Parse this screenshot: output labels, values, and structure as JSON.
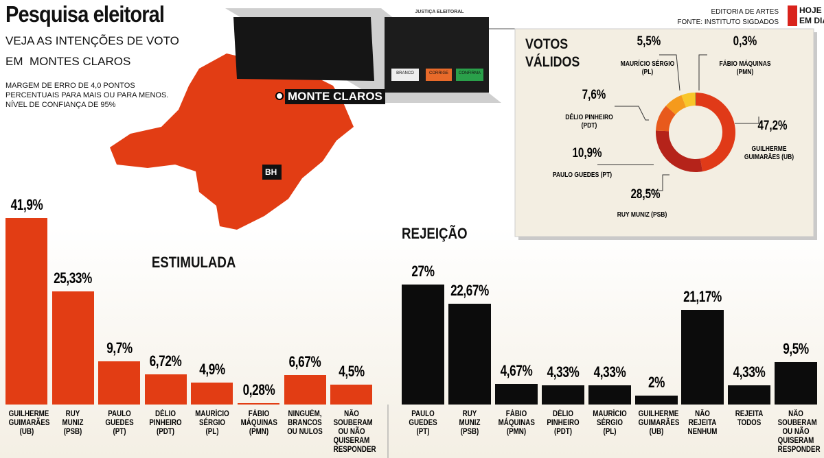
{
  "header": {
    "title": "Pesquisa eleitoral",
    "subtitle": [
      "VEJA AS INTENÇÕES DE VOTO",
      "EM  MONTES CLAROS"
    ],
    "note": "MARGEM DE ERRO DE 4,0 PONTOS PERCENTUAIS PARA MAIS OU PARA MENOS. NÍVEL DE CONFIANÇA DE 95%",
    "credits": [
      "EDITORIA DE ARTES",
      "FONTE: INSTITUTO SIGDADOS"
    ],
    "logo": [
      "HOJE",
      "EM DIA"
    ],
    "map_labels": [
      "MONTE CLAROS",
      "BH"
    ],
    "ballot": {
      "title": "JUSTIÇA ELEITORAL",
      "keys": [
        "BRANCO",
        "CORRIGE",
        "CONFIRMA"
      ]
    }
  },
  "chart_data": [
    {
      "type": "bar",
      "title": "ESTIMULADA",
      "color": "#e23d14",
      "categories": [
        "GUILHERME GUIMARÃES (UB)",
        "RUY MUNIZ (PSB)",
        "PAULO GUEDES (PT)",
        "DÉLIO PINHEIRO (PDT)",
        "MAURÍCIO SÉRGIO (PL)",
        "FÁBIO MÁQUINAS (PMN)",
        "NINGUÉM, BRANCOS OU NULOS",
        "NÃO SOUBERAM OU NÃO QUISERAM RESPONDER"
      ],
      "values": [
        41.9,
        25.33,
        9.7,
        6.72,
        4.9,
        0.28,
        6.67,
        4.5
      ],
      "value_labels": [
        "41,9%",
        "25,33%",
        "9,7%",
        "6,72%",
        "4,9%",
        "0,28%",
        "6,67%",
        "4,5%"
      ]
    },
    {
      "type": "bar",
      "title": "REJEIÇÃO",
      "color": "#0c0c0c",
      "categories": [
        "PAULO GUEDES (PT)",
        "RUY MUNIZ (PSB)",
        "FÁBIO MÁQUINAS (PMN)",
        "DÉLIO PINHEIRO (PDT)",
        "MAURÍCIO SÉRGIO (PL)",
        "GUILHERME GUIMARÃES (UB)",
        "NÃO REJEITA NENHUM",
        "REJEITA TODOS",
        "NÃO SOUBERAM OU NÃO QUISERAM RESPONDER"
      ],
      "values": [
        27,
        22.67,
        4.67,
        4.33,
        4.33,
        2,
        21.17,
        4.33,
        9.5
      ],
      "value_labels": [
        "27%",
        "22,67%",
        "4,67%",
        "4,33%",
        "4,33%",
        "2%",
        "21,17%",
        "4,33%",
        "9,5%"
      ]
    },
    {
      "type": "pie",
      "title": "VOTOS VÁLIDOS",
      "categories": [
        "GUILHERME GUIMARÃES (UB)",
        "RUY MUNIZ (PSB)",
        "PAULO GUEDES (PT)",
        "DÉLIO PINHEIRO (PDT)",
        "MAURÍCIO SÉRGIO (PL)",
        "FÁBIO MÁQUINAS (PMN)"
      ],
      "values": [
        47.2,
        28.5,
        10.9,
        7.6,
        5.5,
        0.3
      ],
      "value_labels": [
        "47,2%",
        "28,5%",
        "10,9%",
        "7,6%",
        "5,5%",
        "0,3%"
      ],
      "colors": [
        "#e03a18",
        "#b5231a",
        "#e85a1c",
        "#f59a1c",
        "#f8c62a",
        "#a9c23a"
      ]
    }
  ]
}
